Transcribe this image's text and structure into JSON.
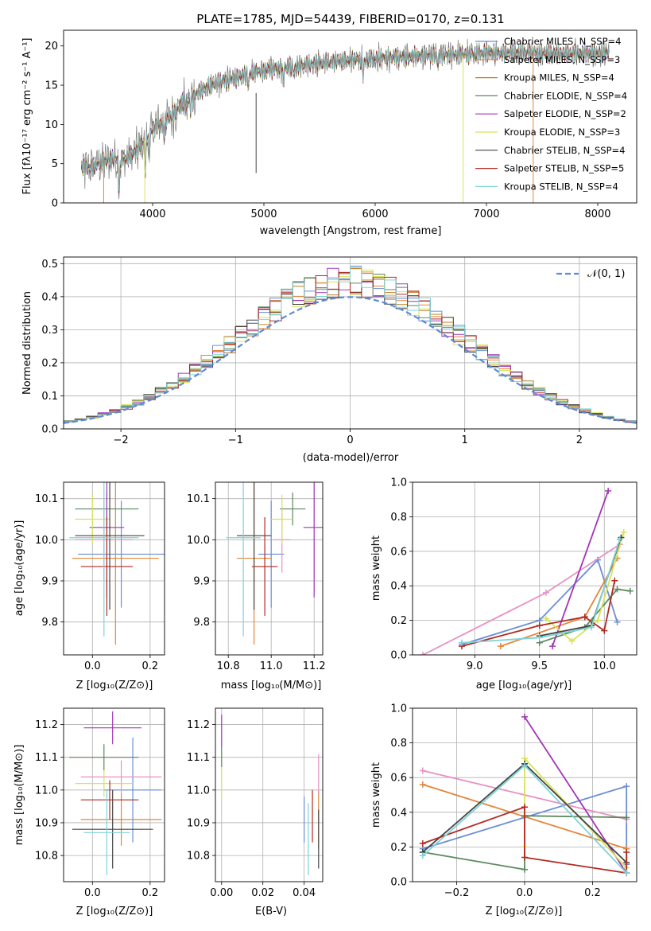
{
  "chart_data": [
    {
      "panel": "spectrum",
      "type": "line",
      "title": "PLATE=1785, MJD=54439, FIBERID=0170, z=0.131",
      "xlabel": "wavelength [Angstrom, rest frame]",
      "ylabel": "Flux [fλ10⁻¹⁷ erg cm⁻² s⁻¹ A⁻¹]",
      "xlim": [
        3200,
        8350
      ],
      "ylim": [
        0,
        22
      ],
      "xticks": [
        4000,
        5000,
        6000,
        7000,
        8000
      ],
      "yticks": [
        0,
        5,
        10,
        15,
        20
      ],
      "grid": false,
      "legend": "top-right",
      "continuum": {
        "x": [
          3360,
          3450,
          3550,
          3650,
          3750,
          3850,
          3950,
          4050,
          4150,
          4300,
          4500,
          4700,
          4900,
          5100,
          5300,
          5500,
          5700,
          5900,
          6100,
          6300,
          6500,
          6700,
          6900,
          7100,
          7300,
          7500,
          7700,
          7900,
          8100
        ],
        "y": [
          4.4,
          4.6,
          5.2,
          5.6,
          5.6,
          6.5,
          8.6,
          10.0,
          10.8,
          13.2,
          14.8,
          15.8,
          16.6,
          17.1,
          17.5,
          17.8,
          18.1,
          18.3,
          18.5,
          18.6,
          18.8,
          18.9,
          19.0,
          19.1,
          19.2,
          19.1,
          19.0,
          19.1,
          19.2
        ]
      },
      "series": [
        {
          "name": "Chabrier MILES, N_SSP=4",
          "color": "#6a8fd6"
        },
        {
          "name": "Salpeter MILES, N_SSP=3",
          "color": "#e2863a"
        },
        {
          "name": "Kroupa MILES, N_SSP=4",
          "color": "#c47e20"
        },
        {
          "name": "Chabrier ELODIE, N_SSP=4",
          "color": "#5a8a5e"
        },
        {
          "name": "Salpeter ELODIE, N_SSP=2",
          "color": "#a334b8"
        },
        {
          "name": "Kroupa ELODIE, N_SSP=3",
          "color": "#d8e25a"
        },
        {
          "name": "Chabrier STELIB, N_SSP=4",
          "color": "#444444"
        },
        {
          "name": "Salpeter STELIB, N_SSP=5",
          "color": "#b22a22"
        },
        {
          "name": "Kroupa STELIB, N_SSP=4",
          "color": "#7fd3d8"
        }
      ]
    },
    {
      "panel": "residual-histogram",
      "type": "line",
      "xlabel": "(data-model)/error",
      "ylabel": "Normed distribution",
      "xlim": [
        -2.5,
        2.5
      ],
      "ylim": [
        0,
        0.52
      ],
      "xticks": [
        -2,
        -1,
        0,
        1,
        2
      ],
      "yticks": [
        0.0,
        0.1,
        0.2,
        0.3,
        0.4,
        0.5
      ],
      "grid": true,
      "legend": "top-right",
      "legend_label": "𝒩(0, 1)",
      "reference_curve": "normal(0,1)",
      "bin_width": 0.1
    },
    {
      "panel": "age-vs-Z",
      "type": "scatter",
      "xlabel": "Z [log₁₀(Z/Z⊙)]",
      "ylabel": "age  [log₁₀(age/yr)]",
      "xlim": [
        -0.1,
        0.25
      ],
      "ylim": [
        9.72,
        10.14
      ],
      "xticks": [
        0.0,
        0.2
      ],
      "yticks": [
        9.8,
        9.9,
        10.0,
        10.1
      ],
      "grid": true,
      "points": [
        {
          "x": 0.1,
          "y": 9.965,
          "xerr": 0.15,
          "yerr": 0.13,
          "color": "#6a8fd6"
        },
        {
          "x": 0.08,
          "y": 9.955,
          "xerr": 0.15,
          "yerr": 0.21,
          "color": "#e2863a"
        },
        {
          "x": 0.04,
          "y": 10.0,
          "xerr": 0.1,
          "yerr": 0.1,
          "color": "#e891c4"
        },
        {
          "x": 0.05,
          "y": 10.075,
          "xerr": 0.11,
          "yerr": 0.04,
          "color": "#5a8a5e"
        },
        {
          "x": 0.05,
          "y": 10.03,
          "xerr": 0.06,
          "yerr": 0.17,
          "color": "#a334b8"
        },
        {
          "x": 0.0,
          "y": 10.05,
          "xerr": 0.06,
          "yerr": 0.06,
          "color": "#d8e25a"
        },
        {
          "x": 0.06,
          "y": 10.01,
          "xerr": 0.12,
          "yerr": 0.18,
          "color": "#444444"
        },
        {
          "x": 0.05,
          "y": 9.935,
          "xerr": 0.09,
          "yerr": 0.12,
          "color": "#b22a22"
        },
        {
          "x": 0.04,
          "y": 10.005,
          "xerr": 0.12,
          "yerr": 0.24,
          "color": "#7fd3d8"
        }
      ]
    },
    {
      "panel": "age-vs-mass",
      "type": "scatter",
      "xlabel": "mass [log₁₀(M/M⊙)]",
      "ylabel": "",
      "xlim": [
        10.74,
        11.24
      ],
      "ylim": [
        9.72,
        10.14
      ],
      "xticks": [
        10.8,
        11.0,
        11.2
      ],
      "yticks": [
        9.8,
        9.9,
        10.0,
        10.1
      ],
      "grid": true,
      "points": [
        {
          "x": 11.0,
          "y": 9.965,
          "xerr": 0.06,
          "yerr": 0.13,
          "color": "#6a8fd6"
        },
        {
          "x": 10.92,
          "y": 9.955,
          "xerr": 0.08,
          "yerr": 0.21,
          "color": "#e2863a"
        },
        {
          "x": 11.05,
          "y": 10.0,
          "xerr": 0.04,
          "yerr": 0.08,
          "color": "#e891c4"
        },
        {
          "x": 11.1,
          "y": 10.075,
          "xerr": 0.06,
          "yerr": 0.04,
          "color": "#5a8a5e"
        },
        {
          "x": 11.2,
          "y": 10.03,
          "xerr": 0.05,
          "yerr": 0.17,
          "color": "#a334b8"
        },
        {
          "x": 11.05,
          "y": 10.05,
          "xerr": 0.05,
          "yerr": 0.06,
          "color": "#d8e25a"
        },
        {
          "x": 10.92,
          "y": 10.01,
          "xerr": 0.08,
          "yerr": 0.18,
          "color": "#444444"
        },
        {
          "x": 10.97,
          "y": 9.935,
          "xerr": 0.06,
          "yerr": 0.12,
          "color": "#b22a22"
        },
        {
          "x": 10.87,
          "y": 10.005,
          "xerr": 0.08,
          "yerr": 0.24,
          "color": "#7fd3d8"
        }
      ]
    },
    {
      "panel": "mass-weight-vs-age",
      "type": "line",
      "xlabel": "age  [log₁₀(age/yr)]",
      "ylabel": "mass weight",
      "xlim": [
        8.52,
        10.25
      ],
      "ylim": [
        0,
        1.0
      ],
      "xticks": [
        9.0,
        9.5,
        10.0
      ],
      "yticks": [
        0.0,
        0.2,
        0.4,
        0.6,
        0.8,
        1.0
      ],
      "grid": true,
      "series": [
        {
          "color": "#6a8fd6",
          "x": [
            8.9,
            9.5,
            9.95,
            10.1
          ],
          "y": [
            0.06,
            0.2,
            0.55,
            0.19
          ]
        },
        {
          "color": "#e2863a",
          "x": [
            9.2,
            9.85,
            10.1
          ],
          "y": [
            0.05,
            0.22,
            0.56
          ]
        },
        {
          "color": "#e891c4",
          "x": [
            8.6,
            9.55,
            10.12
          ],
          "y": [
            0.0,
            0.36,
            0.64
          ]
        },
        {
          "color": "#5a8a5e",
          "x": [
            9.5,
            9.85,
            10.1,
            10.2
          ],
          "y": [
            0.07,
            0.16,
            0.38,
            0.37
          ]
        },
        {
          "color": "#a334b8",
          "x": [
            9.6,
            10.03
          ],
          "y": [
            0.05,
            0.95
          ]
        },
        {
          "color": "#d8e25a",
          "x": [
            9.55,
            9.75,
            9.95,
            10.15
          ],
          "y": [
            0.21,
            0.08,
            0.2,
            0.71
          ]
        },
        {
          "color": "#444444",
          "x": [
            9.5,
            9.9,
            10.13
          ],
          "y": [
            0.11,
            0.17,
            0.68
          ]
        },
        {
          "color": "#b22a22",
          "x": [
            8.9,
            9.5,
            9.85,
            10.0,
            10.08
          ],
          "y": [
            0.05,
            0.17,
            0.22,
            0.14,
            0.43
          ]
        },
        {
          "color": "#7fd3d8",
          "x": [
            8.9,
            9.5,
            9.9,
            10.12
          ],
          "y": [
            0.07,
            0.1,
            0.16,
            0.67
          ]
        }
      ]
    },
    {
      "panel": "mass-vs-Z",
      "type": "scatter",
      "xlabel": "Z [log₁₀(Z/Z⊙)]",
      "ylabel": "mass [log₁₀(M/M⊙)]",
      "xlim": [
        -0.1,
        0.25
      ],
      "ylim": [
        10.72,
        11.25
      ],
      "xticks": [
        0.0,
        0.2
      ],
      "yticks": [
        10.8,
        10.9,
        11.0,
        11.1,
        11.2
      ],
      "grid": true,
      "points": [
        {
          "x": 0.14,
          "y": 11.0,
          "xerr": 0.1,
          "yerr": 0.16,
          "color": "#6a8fd6"
        },
        {
          "x": 0.1,
          "y": 10.91,
          "xerr": 0.14,
          "yerr": 0.08,
          "color": "#e2863a"
        },
        {
          "x": 0.1,
          "y": 11.04,
          "xerr": 0.14,
          "yerr": 0.05,
          "color": "#e891c4"
        },
        {
          "x": 0.04,
          "y": 11.1,
          "xerr": 0.12,
          "yerr": 0.04,
          "color": "#5a8a5e"
        },
        {
          "x": 0.07,
          "y": 11.19,
          "xerr": 0.1,
          "yerr": 0.05,
          "color": "#a334b8"
        },
        {
          "x": 0.04,
          "y": 11.02,
          "xerr": 0.1,
          "yerr": 0.04,
          "color": "#d8e25a"
        },
        {
          "x": 0.07,
          "y": 10.88,
          "xerr": 0.14,
          "yerr": 0.12,
          "color": "#444444"
        },
        {
          "x": 0.06,
          "y": 10.97,
          "xerr": 0.1,
          "yerr": 0.06,
          "color": "#b22a22"
        },
        {
          "x": 0.05,
          "y": 10.87,
          "xerr": 0.08,
          "yerr": 0.13,
          "color": "#7fd3d8"
        }
      ]
    },
    {
      "panel": "mass-vs-EBV",
      "type": "scatter",
      "xlabel": "E(B-V)",
      "ylabel": "",
      "xlim": [
        -0.003,
        0.049
      ],
      "ylim": [
        10.72,
        11.25
      ],
      "xticks": [
        0.0,
        0.02,
        0.04
      ],
      "yticks": [
        10.8,
        10.9,
        11.0,
        11.1,
        11.2
      ],
      "grid": true,
      "points": [
        {
          "x": 0.04,
          "y": 10.91,
          "yerr": 0.07,
          "color": "#6a8fd6"
        },
        {
          "x": 0.047,
          "y": 10.91,
          "yerr": 0.09,
          "color": "#e2863a"
        },
        {
          "x": 0.047,
          "y": 11.05,
          "yerr": 0.06,
          "color": "#e891c4"
        },
        {
          "x": 0.0,
          "y": 11.1,
          "yerr": 0.03,
          "color": "#5a8a5e"
        },
        {
          "x": 0.0,
          "y": 11.18,
          "yerr": 0.05,
          "color": "#a334b8"
        },
        {
          "x": 0.0,
          "y": 11.02,
          "yerr": 0.05,
          "color": "#d8e25a"
        },
        {
          "x": 0.047,
          "y": 10.85,
          "yerr": 0.09,
          "color": "#444444"
        },
        {
          "x": 0.044,
          "y": 10.92,
          "yerr": 0.08,
          "color": "#b22a22"
        },
        {
          "x": 0.042,
          "y": 10.85,
          "yerr": 0.11,
          "color": "#7fd3d8"
        }
      ]
    },
    {
      "panel": "mass-weight-vs-Z",
      "type": "line",
      "xlabel": "Z [log₁₀(Z/Z⊙)]",
      "ylabel": "mass weight",
      "xlim": [
        -0.33,
        0.33
      ],
      "ylim": [
        0,
        1.0
      ],
      "xticks": [
        -0.2,
        0.0,
        0.2
      ],
      "yticks": [
        0.0,
        0.2,
        0.4,
        0.6,
        0.8,
        1.0
      ],
      "grid": true,
      "series": [
        {
          "color": "#6a8fd6",
          "x": [
            -0.3,
            0.0,
            0.3,
            0.3
          ],
          "y": [
            0.19,
            0.37,
            0.55,
            0.1
          ]
        },
        {
          "color": "#e2863a",
          "x": [
            -0.3,
            0.3
          ],
          "y": [
            0.56,
            0.19
          ]
        },
        {
          "color": "#e891c4",
          "x": [
            -0.3,
            0.3
          ],
          "y": [
            0.64,
            0.36
          ]
        },
        {
          "color": "#5a8a5e",
          "x": [
            -0.3,
            0.0,
            0.0,
            0.3
          ],
          "y": [
            0.17,
            0.07,
            0.38,
            0.37
          ]
        },
        {
          "color": "#a334b8",
          "x": [
            0.0,
            0.3
          ],
          "y": [
            0.95,
            0.05
          ]
        },
        {
          "color": "#d8e25a",
          "x": [
            0.0,
            0.0,
            0.3
          ],
          "y": [
            0.2,
            0.71,
            0.08
          ]
        },
        {
          "color": "#444444",
          "x": [
            -0.3,
            0.0,
            0.3
          ],
          "y": [
            0.17,
            0.68,
            0.11
          ]
        },
        {
          "color": "#b22a22",
          "x": [
            -0.3,
            0.0,
            0.0,
            0.3,
            0.3
          ],
          "y": [
            0.22,
            0.43,
            0.14,
            0.05,
            0.17
          ]
        },
        {
          "color": "#7fd3d8",
          "x": [
            -0.3,
            0.0,
            0.3
          ],
          "y": [
            0.15,
            0.67,
            0.05
          ]
        }
      ]
    }
  ]
}
